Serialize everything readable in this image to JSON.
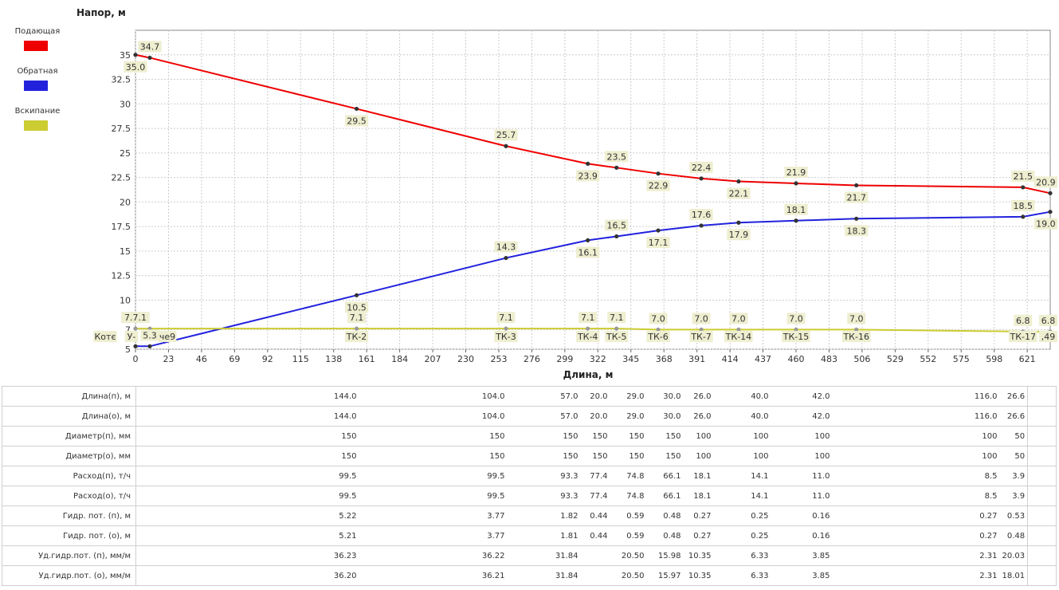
{
  "colors": {
    "supply": "#ee0000",
    "return": "#2222dd",
    "boiling": "#cccc33",
    "grid": "#cccccc",
    "label_bg": "#eeeed0"
  },
  "legend": [
    {
      "label": "Подающая",
      "color": "#ee0000"
    },
    {
      "label": "Обратная",
      "color": "#2222dd"
    },
    {
      "label": "Вскипание",
      "color": "#cccc33"
    }
  ],
  "chart_data": {
    "type": "line",
    "ylabel": "Напор, м",
    "xlabel": "Длина, м",
    "xlim": [
      0,
      637
    ],
    "ylim": [
      5,
      37.5
    ],
    "x_ticks": [
      "0",
      "23",
      "46",
      "69",
      "92",
      "115",
      "138",
      "161",
      "184",
      "207",
      "230",
      "253",
      "276",
      "299",
      "322",
      "345",
      "368",
      "391",
      "414",
      "437",
      "460",
      "483",
      "506",
      "529",
      "552",
      "575",
      "598",
      "621"
    ],
    "y_ticks": [
      "5",
      "7",
      "10",
      "12.5",
      "15",
      "17.5",
      "20",
      "22.5",
      "25",
      "27.5",
      "30",
      "32.5",
      "35"
    ],
    "grid": true,
    "legend_position": "left",
    "x": [
      0,
      10,
      154,
      258,
      315,
      335,
      364,
      394,
      420,
      460,
      502,
      618,
      637
    ],
    "series": [
      {
        "name": "Подающая",
        "values": [
          35.0,
          34.7,
          29.5,
          25.7,
          23.9,
          23.5,
          22.9,
          22.4,
          22.1,
          21.9,
          21.7,
          21.5,
          20.9
        ]
      },
      {
        "name": "Обратная",
        "values": [
          5.3,
          5.3,
          10.5,
          14.3,
          16.1,
          16.5,
          17.1,
          17.6,
          17.9,
          18.1,
          18.3,
          18.5,
          19.0
        ]
      },
      {
        "name": "Вскипание",
        "values": [
          7.1,
          7.1,
          7.1,
          7.1,
          7.1,
          7.1,
          7.0,
          7.0,
          7.0,
          7.0,
          7.0,
          6.8,
          6.8
        ]
      }
    ],
    "data_labels": {
      "supply": [
        {
          "i": 0,
          "text": "35.0",
          "pos": "below"
        },
        {
          "i": 1,
          "text": "34.7",
          "pos": "above"
        },
        {
          "i": 2,
          "text": "29.5",
          "pos": "below"
        },
        {
          "i": 3,
          "text": "25.7",
          "pos": "above"
        },
        {
          "i": 4,
          "text": "23.9",
          "pos": "below"
        },
        {
          "i": 5,
          "text": "23.5",
          "pos": "above"
        },
        {
          "i": 6,
          "text": "22.9",
          "pos": "below"
        },
        {
          "i": 7,
          "text": "22.4",
          "pos": "above"
        },
        {
          "i": 8,
          "text": "22.1",
          "pos": "below"
        },
        {
          "i": 9,
          "text": "21.9",
          "pos": "above"
        },
        {
          "i": 10,
          "text": "21.7",
          "pos": "below"
        },
        {
          "i": 11,
          "text": "21.5",
          "pos": "above"
        },
        {
          "i": 12,
          "text": "20.9",
          "pos": "above"
        }
      ],
      "return": [
        {
          "i": 1,
          "text": "5.3",
          "pos": "above"
        },
        {
          "i": 2,
          "text": "10.5",
          "pos": "below"
        },
        {
          "i": 3,
          "text": "14.3",
          "pos": "above"
        },
        {
          "i": 4,
          "text": "16.1",
          "pos": "below"
        },
        {
          "i": 5,
          "text": "16.5",
          "pos": "above"
        },
        {
          "i": 6,
          "text": "17.1",
          "pos": "below"
        },
        {
          "i": 7,
          "text": "17.6",
          "pos": "above"
        },
        {
          "i": 8,
          "text": "17.9",
          "pos": "below"
        },
        {
          "i": 9,
          "text": "18.1",
          "pos": "above"
        },
        {
          "i": 10,
          "text": "18.3",
          "pos": "below"
        },
        {
          "i": 11,
          "text": "18.5",
          "pos": "above"
        },
        {
          "i": 12,
          "text": "19.0",
          "pos": "below"
        }
      ],
      "boiling": [
        {
          "i": 0,
          "text": "7.7.1",
          "pos": "above"
        },
        {
          "i": 2,
          "text": "7.1",
          "pos": "above"
        },
        {
          "i": 3,
          "text": "7.1",
          "pos": "above"
        },
        {
          "i": 4,
          "text": "7.1",
          "pos": "above"
        },
        {
          "i": 5,
          "text": "7.1",
          "pos": "above"
        },
        {
          "i": 6,
          "text": "7.0",
          "pos": "above"
        },
        {
          "i": 7,
          "text": "7.0",
          "pos": "above"
        },
        {
          "i": 8,
          "text": "7.0",
          "pos": "above"
        },
        {
          "i": 9,
          "text": "7.0",
          "pos": "above"
        },
        {
          "i": 10,
          "text": "7.0",
          "pos": "above"
        },
        {
          "i": 11,
          "text": "6.8",
          "pos": "above"
        },
        {
          "i": 12,
          "text": "6.8",
          "pos": "above"
        }
      ]
    },
    "node_labels": [
      {
        "i": 0,
        "text": "Котє"
      },
      {
        "i": 1,
        "text": "У-"
      },
      {
        "i": 1,
        "text": "че9"
      },
      {
        "i": 2,
        "text": "ТК-2"
      },
      {
        "i": 3,
        "text": "ТК-3"
      },
      {
        "i": 4,
        "text": "ТК-4"
      },
      {
        "i": 5,
        "text": "ТК-5"
      },
      {
        "i": 6,
        "text": "ТК-6"
      },
      {
        "i": 7,
        "text": "ТК-7"
      },
      {
        "i": 8,
        "text": "ТК-14"
      },
      {
        "i": 9,
        "text": "ТК-15"
      },
      {
        "i": 10,
        "text": "ТК-16"
      },
      {
        "i": 11,
        "text": "ТК-17"
      },
      {
        "i": 12,
        "text": ",49"
      }
    ]
  },
  "table": {
    "rows": [
      {
        "label": "Длина(п), м",
        "values": [
          "144.0",
          "104.0",
          "57.0",
          "20.0",
          "29.0",
          "30.0",
          "26.0",
          "40.0",
          "42.0",
          "116.0",
          "26.6"
        ]
      },
      {
        "label": "Длина(о), м",
        "values": [
          "144.0",
          "104.0",
          "57.0",
          "20.0",
          "29.0",
          "30.0",
          "26.0",
          "40.0",
          "42.0",
          "116.0",
          "26.6"
        ]
      },
      {
        "label": "Диаметр(п), мм",
        "values": [
          "150",
          "150",
          "150",
          "150",
          "150",
          "150",
          "100",
          "100",
          "100",
          "100",
          "50"
        ]
      },
      {
        "label": "Диаметр(о), мм",
        "values": [
          "150",
          "150",
          "150",
          "150",
          "150",
          "150",
          "100",
          "100",
          "100",
          "100",
          "50"
        ]
      },
      {
        "label": "Расход(п), т/ч",
        "values": [
          "99.5",
          "99.5",
          "93.3",
          "77.4",
          "74.8",
          "66.1",
          "18.1",
          "14.1",
          "11.0",
          "8.5",
          "3.9"
        ]
      },
      {
        "label": "Расход(о), т/ч",
        "values": [
          "99.5",
          "99.5",
          "93.3",
          "77.4",
          "74.8",
          "66.1",
          "18.1",
          "14.1",
          "11.0",
          "8.5",
          "3.9"
        ]
      },
      {
        "label": "Гидр. пот. (п), м",
        "values": [
          "5.22",
          "3.77",
          "1.82",
          "0.44",
          "0.59",
          "0.48",
          "0.27",
          "0.25",
          "0.16",
          "0.27",
          "0.53"
        ]
      },
      {
        "label": "Гидр. пот. (о), м",
        "values": [
          "5.21",
          "3.77",
          "1.81",
          "0.44",
          "0.59",
          "0.48",
          "0.27",
          "0.25",
          "0.16",
          "0.27",
          "0.48"
        ]
      },
      {
        "label": "Уд.гидр.пот. (п), мм/м",
        "values": [
          "36.23",
          "36.22",
          "31.84",
          "",
          "20.50",
          "15.98",
          "10.35",
          "6.33",
          "3.85",
          "2.31",
          "20.03"
        ]
      },
      {
        "label": "Уд.гидр.пот. (о), мм/м",
        "values": [
          "36.20",
          "36.21",
          "31.84",
          "",
          "20.50",
          "15.97",
          "10.35",
          "6.33",
          "3.85",
          "2.31",
          "18.01"
        ]
      }
    ]
  }
}
